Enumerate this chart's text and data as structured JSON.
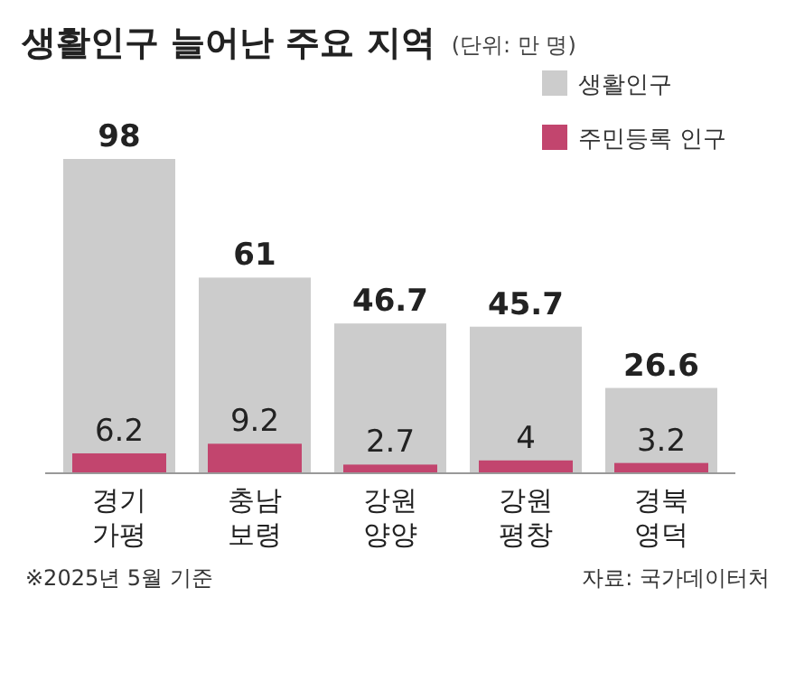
{
  "chart_data": {
    "type": "bar",
    "title": "생활인구 늘어난 주요 지역",
    "subtitle": "(단위: 만 명)",
    "categories": [
      "경기 가평",
      "충남 보령",
      "강원 양양",
      "강원 평창",
      "경북 영덕"
    ],
    "series": [
      {
        "name": "생활인구",
        "color": "#cccccc",
        "values": [
          98,
          61,
          46.7,
          45.7,
          26.6
        ]
      },
      {
        "name": "주민등록 인구",
        "color": "#c2456e",
        "values": [
          6.2,
          9.2,
          2.7,
          4,
          3.2
        ]
      }
    ],
    "data_labels": true,
    "legend": "top right",
    "annotations": [
      "※2025년 5월 기준",
      "자료: 국가데이터처"
    ]
  }
}
